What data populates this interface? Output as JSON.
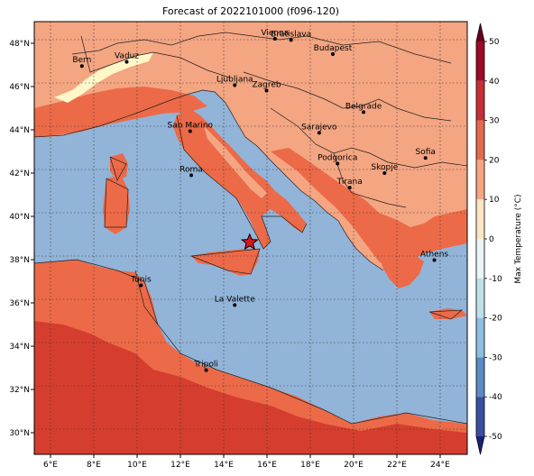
{
  "title": "Forecast of 2022101000 (f096-120)",
  "lon_ticks": [
    "6°E",
    "8°E",
    "10°E",
    "12°E",
    "14°E",
    "16°E",
    "18°E",
    "20°E",
    "22°E",
    "24°E"
  ],
  "lat_ticks": [
    "48°N",
    "46°N",
    "44°N",
    "42°N",
    "40°N",
    "38°N",
    "36°N",
    "34°N",
    "32°N",
    "30°N"
  ],
  "colorbar": {
    "label": "Max Temperature (°C)",
    "ticks": [
      "50",
      "40",
      "30",
      "20",
      "10",
      "0",
      "-10",
      "-20",
      "-30",
      "-40",
      "-50"
    ],
    "colors": [
      "#67001f",
      "#b2182b",
      "#d6604d",
      "#f4a582",
      "#fddbc7",
      "#fff7bc",
      "#e0f3f8",
      "#abd9e9",
      "#74add1",
      "#4575b4",
      "#313695",
      "#1b1f7a"
    ]
  },
  "map_colors": {
    "sea": "#92b4d8",
    "warm_20_30": "#f4a582",
    "hot_30_40": "#ec6a48",
    "very_hot": "#d53e2e",
    "cool_10_20": "#fff7c8"
  },
  "cities": [
    {
      "name": "Bern",
      "lon": 7.45,
      "lat": 46.95
    },
    {
      "name": "Vaduz",
      "lon": 9.52,
      "lat": 47.14
    },
    {
      "name": "Vienna",
      "lon": 16.37,
      "lat": 48.21
    },
    {
      "name": "Bratislava",
      "lon": 17.11,
      "lat": 48.15
    },
    {
      "name": "Budapest",
      "lon": 19.04,
      "lat": 47.5
    },
    {
      "name": "Ljubljana",
      "lon": 14.51,
      "lat": 46.06
    },
    {
      "name": "Zagreb",
      "lon": 15.98,
      "lat": 45.81
    },
    {
      "name": "Belgrade",
      "lon": 20.46,
      "lat": 44.82
    },
    {
      "name": "San Marino",
      "lon": 12.45,
      "lat": 43.94
    },
    {
      "name": "Sarajevo",
      "lon": 18.41,
      "lat": 43.86
    },
    {
      "name": "Roma",
      "lon": 12.5,
      "lat": 41.9
    },
    {
      "name": "Podgorica",
      "lon": 19.26,
      "lat": 42.44
    },
    {
      "name": "Skopje",
      "lon": 21.43,
      "lat": 42.0
    },
    {
      "name": "Sofia",
      "lon": 23.32,
      "lat": 42.7
    },
    {
      "name": "Tirana",
      "lon": 19.82,
      "lat": 41.33
    },
    {
      "name": "Athens",
      "lon": 23.73,
      "lat": 37.98
    },
    {
      "name": "Tunis",
      "lon": 10.18,
      "lat": 36.81
    },
    {
      "name": "La Valette",
      "lon": 14.51,
      "lat": 35.9
    },
    {
      "name": "Tripoli",
      "lon": 13.19,
      "lat": 32.89
    }
  ],
  "marker": {
    "lon": 15.2,
    "lat": 38.8,
    "symbol": "star"
  }
}
